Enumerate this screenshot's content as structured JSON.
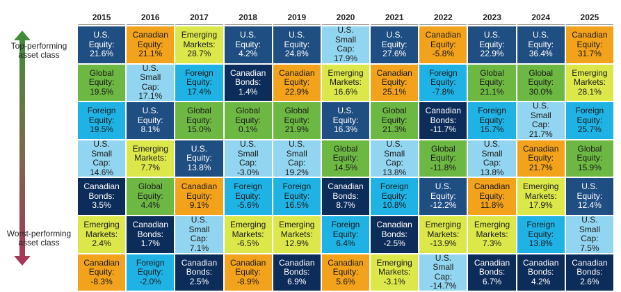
{
  "side_labels": {
    "top": "Top-performing asset class",
    "bottom": "Worst-performing asset class"
  },
  "table": {
    "years": [
      "2015",
      "2016",
      "2017",
      "2018",
      "2019",
      "2020",
      "2021",
      "2022",
      "2023",
      "2024",
      "2025"
    ],
    "rows": [
      [
        {
          "label": "U.S. Equity:",
          "value": "21.6%",
          "color": "#1f4e82"
        },
        {
          "label": "Canadian Equity:",
          "value": "21.1%",
          "color": "#f3a21c"
        },
        {
          "label": "Emerging Markets:",
          "value": "28.7%",
          "color": "#dce84a"
        },
        {
          "label": "U.S. Equity:",
          "value": "4.2%",
          "color": "#1f4e82"
        },
        {
          "label": "U.S. Equity:",
          "value": "24.8%",
          "color": "#1f4e82"
        },
        {
          "label": "U.S. Small Cap:",
          "value": "17.9%",
          "color": "#92d5f0"
        },
        {
          "label": "U.S. Equity:",
          "value": "27.6%",
          "color": "#1f4e82"
        },
        {
          "label": "Canadian Equity:",
          "value": "-5.8%",
          "color": "#f3a21c"
        },
        {
          "label": "U.S. Equity:",
          "value": "22.9%",
          "color": "#1f4e82"
        },
        {
          "label": "U.S. Equity:",
          "value": "36.4%",
          "color": "#1f4e82"
        },
        {
          "label": "Canadian Equity:",
          "value": "31.7%",
          "color": "#f3a21c"
        }
      ],
      [
        {
          "label": "Global Equity:",
          "value": "19.5%",
          "color": "#6cb843"
        },
        {
          "label": "U.S. Small Cap:",
          "value": "17.1%",
          "color": "#92d5f0"
        },
        {
          "label": "Foreign Equity:",
          "value": "17.4%",
          "color": "#1fb3e5"
        },
        {
          "label": "Canadian Bonds:",
          "value": "1.4%",
          "color": "#0c2c5a"
        },
        {
          "label": "Canadian Equity:",
          "value": "22.9%",
          "color": "#f3a21c"
        },
        {
          "label": "Emerging Markets:",
          "value": "16.6%",
          "color": "#dce84a"
        },
        {
          "label": "Canadian Equity:",
          "value": "25.1%",
          "color": "#f3a21c"
        },
        {
          "label": "Foreign Equity:",
          "value": "-7.8%",
          "color": "#1fb3e5"
        },
        {
          "label": "Global Equity:",
          "value": "21.1%",
          "color": "#6cb843"
        },
        {
          "label": "Global Equity:",
          "value": "30.0%",
          "color": "#6cb843"
        },
        {
          "label": "Emerging Markets:",
          "value": "28.1%",
          "color": "#dce84a"
        }
      ],
      [
        {
          "label": "Foreign Equity:",
          "value": "19.5%",
          "color": "#1fb3e5"
        },
        {
          "label": "U.S. Equity:",
          "value": "8.1%",
          "color": "#1f4e82"
        },
        {
          "label": "Global Equity:",
          "value": "15.0%",
          "color": "#6cb843"
        },
        {
          "label": "Global Equity:",
          "value": "0.1%",
          "color": "#6cb843"
        },
        {
          "label": "Global Equity:",
          "value": "21.9%",
          "color": "#6cb843"
        },
        {
          "label": "U.S. Equity:",
          "value": "16.3%",
          "color": "#1f4e82"
        },
        {
          "label": "Global Equity:",
          "value": "21.3%",
          "color": "#6cb843"
        },
        {
          "label": "Canadian Bonds:",
          "value": "-11.7%",
          "color": "#0c2c5a"
        },
        {
          "label": "Foreign Equity:",
          "value": "15.7%",
          "color": "#1fb3e5"
        },
        {
          "label": "U.S. Small Cap:",
          "value": "21.7%",
          "color": "#92d5f0"
        },
        {
          "label": "Foreign Equity:",
          "value": "25.7%",
          "color": "#1fb3e5"
        }
      ],
      [
        {
          "label": "U.S. Small Cap:",
          "value": "14.6%",
          "color": "#92d5f0"
        },
        {
          "label": "Emerging Markets:",
          "value": "7.7%",
          "color": "#dce84a"
        },
        {
          "label": "U.S. Equity:",
          "value": "13.8%",
          "color": "#1f4e82"
        },
        {
          "label": "U.S. Small Cap:",
          "value": "-3.0%",
          "color": "#92d5f0"
        },
        {
          "label": "U.S. Small Cap:",
          "value": "19.2%",
          "color": "#92d5f0"
        },
        {
          "label": "Global Equity:",
          "value": "14.5%",
          "color": "#6cb843"
        },
        {
          "label": "U.S. Small Cap:",
          "value": "13.8%",
          "color": "#92d5f0"
        },
        {
          "label": "Global Equity:",
          "value": "-11.8%",
          "color": "#6cb843"
        },
        {
          "label": "U.S. Small Cap:",
          "value": "13.8%",
          "color": "#92d5f0"
        },
        {
          "label": "Canadian Equity:",
          "value": "21.7%",
          "color": "#f3a21c"
        },
        {
          "label": "Global Equity:",
          "value": "15.9%",
          "color": "#6cb843"
        }
      ],
      [
        {
          "label": "Canadian Bonds:",
          "value": "3.5%",
          "color": "#0c2c5a"
        },
        {
          "label": "Global Equity:",
          "value": "4.4%",
          "color": "#6cb843"
        },
        {
          "label": "Canadian Equity:",
          "value": "9.1%",
          "color": "#f3a21c"
        },
        {
          "label": "Foreign Equity:",
          "value": "-5.6%",
          "color": "#1fb3e5"
        },
        {
          "label": "Foreign Equity:",
          "value": "16.5%",
          "color": "#1fb3e5"
        },
        {
          "label": "Canadian Bonds:",
          "value": "8.7%",
          "color": "#0c2c5a"
        },
        {
          "label": "Foreign Equity:",
          "value": "10.8%",
          "color": "#1fb3e5"
        },
        {
          "label": "U.S. Equity:",
          "value": "-12.2%",
          "color": "#1f4e82"
        },
        {
          "label": "Canadian Equity:",
          "value": "11.8%",
          "color": "#f3a21c"
        },
        {
          "label": "Emerging Markets:",
          "value": "17.9%",
          "color": "#dce84a"
        },
        {
          "label": "U.S. Equity:",
          "value": "12.4%",
          "color": "#1f4e82"
        }
      ],
      [
        {
          "label": "Emerging Markets:",
          "value": "2.4%",
          "color": "#dce84a"
        },
        {
          "label": "Canadian Bonds:",
          "value": "1.7%",
          "color": "#0c2c5a"
        },
        {
          "label": "U.S. Small Cap:",
          "value": "7.1%",
          "color": "#92d5f0"
        },
        {
          "label": "Emerging Markets:",
          "value": "-6.5%",
          "color": "#dce84a"
        },
        {
          "label": "Emerging Markets:",
          "value": "12.9%",
          "color": "#dce84a"
        },
        {
          "label": "Foreign Equity:",
          "value": "6.4%",
          "color": "#1fb3e5"
        },
        {
          "label": "Canadian Bonds:",
          "value": "-2.5%",
          "color": "#0c2c5a"
        },
        {
          "label": "Emerging Markets:",
          "value": "-13.9%",
          "color": "#dce84a"
        },
        {
          "label": "Emerging Markets:",
          "value": "7.3%",
          "color": "#dce84a"
        },
        {
          "label": "Foreign Equity:",
          "value": "13.8%",
          "color": "#1fb3e5"
        },
        {
          "label": "U.S. Small Cap:",
          "value": "7.5%",
          "color": "#92d5f0"
        }
      ],
      [
        {
          "label": "Canadian Equity:",
          "value": "-8.3%",
          "color": "#f3a21c"
        },
        {
          "label": "Foreign Equity:",
          "value": "-2.0%",
          "color": "#1fb3e5"
        },
        {
          "label": "Canadian Bonds:",
          "value": "2.5%",
          "color": "#0c2c5a"
        },
        {
          "label": "Canadian Equity:",
          "value": "-8.9%",
          "color": "#f3a21c"
        },
        {
          "label": "Canadian Bonds:",
          "value": "6.9%",
          "color": "#0c2c5a"
        },
        {
          "label": "Canadian Equity:",
          "value": "5.6%",
          "color": "#f3a21c"
        },
        {
          "label": "Emerging Markets:",
          "value": "-3.1%",
          "color": "#dce84a"
        },
        {
          "label": "U.S. Small Cap:",
          "value": "-14.7%",
          "color": "#92d5f0"
        },
        {
          "label": "Canadian Bonds:",
          "value": "6.7%",
          "color": "#0c2c5a"
        },
        {
          "label": "Canadian Bonds:",
          "value": "4.2%",
          "color": "#0c2c5a"
        },
        {
          "label": "Canadian Bonds:",
          "value": "2.6%",
          "color": "#0c2c5a"
        }
      ]
    ]
  }
}
